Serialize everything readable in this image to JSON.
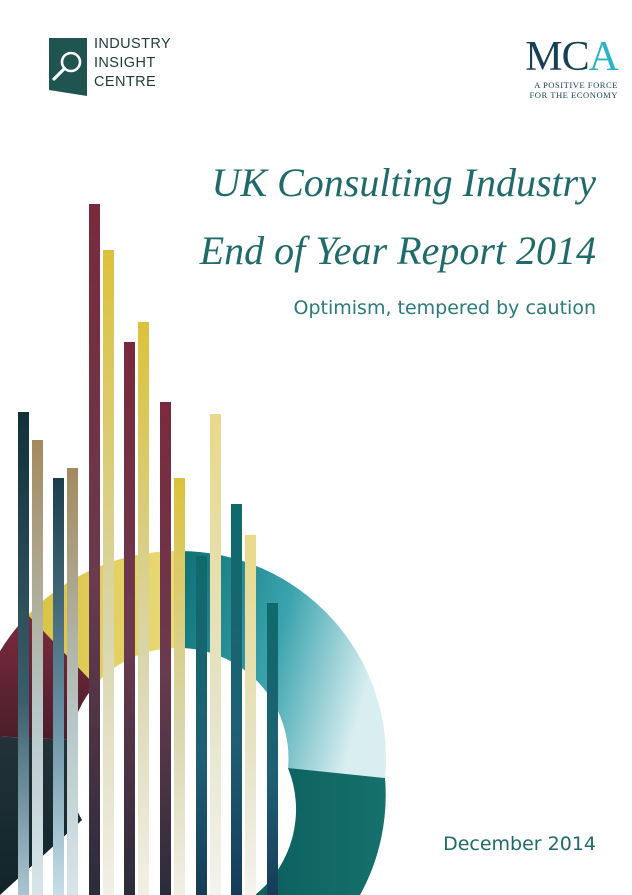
{
  "logos": {
    "iic": {
      "lines": [
        "INDUSTRY",
        "INSIGHT",
        "CENTRE"
      ],
      "icon": "magnifier-icon"
    },
    "mca": {
      "word_mc": "MC",
      "word_a": "A",
      "tagline": [
        "A POSITIVE FORCE",
        "FOR THE ECONOMY"
      ]
    }
  },
  "cover": {
    "title_line1": "UK Consulting Industry",
    "title_line2": "End of Year Report 2014",
    "subtitle": "Optimism, tempered by caution",
    "date": "December 2014"
  },
  "colors": {
    "teal": "#0f6e70",
    "dark_teal": "#15393f",
    "maroon": "#7c2c3e",
    "gold": "#dcc23a",
    "tan": "#a99163",
    "light_blue": "#bfe0e8",
    "pale_yellow": "#ecdc8e"
  }
}
